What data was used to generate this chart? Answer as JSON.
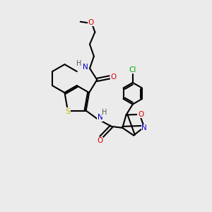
{
  "bg": "#ebebeb",
  "bond_color": "#000000",
  "bw": 1.5,
  "C": "#000000",
  "N": "#0000cc",
  "O": "#dd0000",
  "S": "#bbbb00",
  "Cl": "#00aa00",
  "H_col": "#555555",
  "fs": 7.5
}
